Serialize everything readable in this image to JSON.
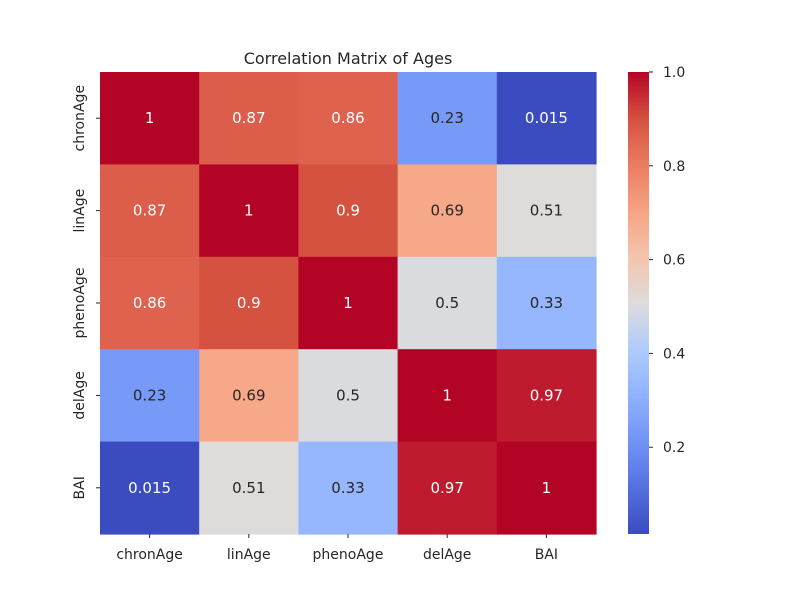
{
  "chart_data": {
    "type": "heatmap",
    "title": "Correlation Matrix of Ages",
    "xlabel": "",
    "ylabel": "",
    "x_categories": [
      "chronAge",
      "linAge",
      "phenoAge",
      "delAge",
      "BAI"
    ],
    "y_categories": [
      "chronAge",
      "linAge",
      "phenoAge",
      "delAge",
      "BAI"
    ],
    "values": [
      [
        1,
        0.87,
        0.86,
        0.23,
        0.015
      ],
      [
        0.87,
        1,
        0.9,
        0.69,
        0.51
      ],
      [
        0.86,
        0.9,
        1,
        0.5,
        0.33
      ],
      [
        0.23,
        0.69,
        0.5,
        1,
        0.97
      ],
      [
        0.015,
        0.51,
        0.33,
        0.97,
        1
      ]
    ],
    "cell_labels": [
      [
        "1",
        "0.87",
        "0.86",
        "0.23",
        "0.015"
      ],
      [
        "0.87",
        "1",
        "0.9",
        "0.69",
        "0.51"
      ],
      [
        "0.86",
        "0.9",
        "1",
        "0.5",
        "0.33"
      ],
      [
        "0.23",
        "0.69",
        "0.5",
        "1",
        "0.97"
      ],
      [
        "0.015",
        "0.51",
        "0.33",
        "0.97",
        "1"
      ]
    ],
    "colormap": "coolwarm",
    "colorbar": {
      "range": [
        0.015,
        1.0
      ],
      "ticks": [
        0.2,
        0.4,
        0.6,
        0.8,
        1.0
      ],
      "tick_labels": [
        "0.2",
        "0.4",
        "0.6",
        "0.8",
        "1.0"
      ]
    },
    "grid": false,
    "legend": "none",
    "colors": {
      "low": "#3b4cc0",
      "mid": "#dddcdc",
      "high": "#b40426",
      "text_dark": "#262626",
      "text_light": "#ffffff"
    }
  }
}
